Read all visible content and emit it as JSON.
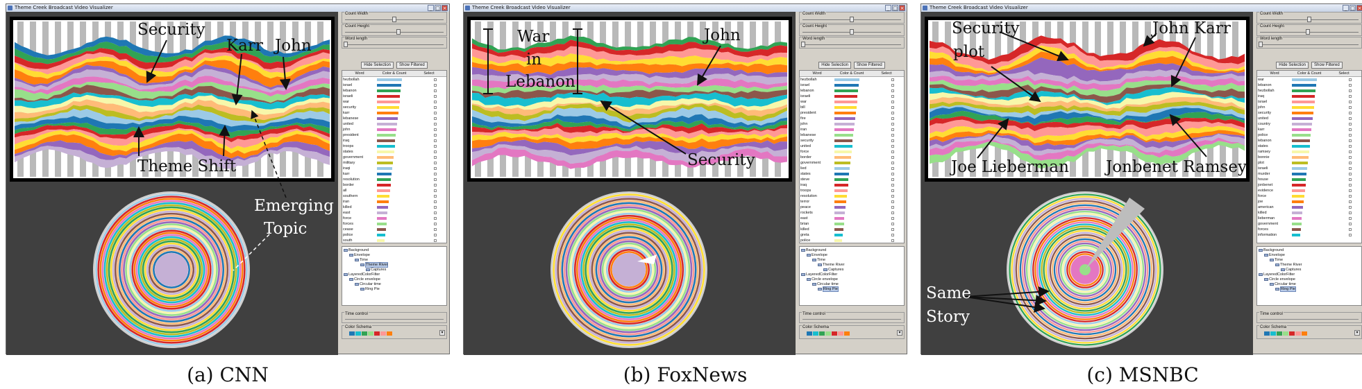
{
  "window_title": "Theme Creek Broadcast Video Visualizer",
  "window_buttons": [
    "_",
    "□",
    "×"
  ],
  "controls": {
    "count_width": "Count Width",
    "count_height": "Count Height",
    "word_length": "Word length",
    "hide_selection": "Hide Selection",
    "show_filtered": "Show Filtered",
    "col_word": "Word",
    "col_color_count": "Color & Count",
    "col_select": "Select",
    "time_control": "Time control",
    "color_schema": "Color Schema"
  },
  "tree": [
    "Background",
    "Envelope",
    "Time",
    "Theme River",
    "Captures",
    "LayeredColorFilter",
    "Circle envelope",
    "Circular time",
    "Ring Pie"
  ],
  "palette": [
    "#9ccae6",
    "#1f77b4",
    "#31a354",
    "#d62728",
    "#ff9896",
    "#ffdd33",
    "#ff7f0e",
    "#9467bd",
    "#c5b0d5",
    "#e377c2",
    "#98df8a",
    "#8c564b",
    "#17becf",
    "#f7f7aa",
    "#ffbb78",
    "#bcbd22"
  ],
  "panels": [
    {
      "caption": "(a)  CNN",
      "words": [
        "hezbollah",
        "israel",
        "lebanon",
        "israeli",
        "war",
        "security",
        "karr",
        "lebanese",
        "united",
        "john",
        "president",
        "iraq",
        "troops",
        "states",
        "government",
        "military",
        "iraqi",
        "karr",
        "resolution",
        "border",
        "all",
        "southern",
        "iran",
        "killed",
        "east",
        "force",
        "forces",
        "cease",
        "police",
        "south"
      ],
      "annotations": [
        "Security",
        "Karr",
        "John",
        "Theme Shift",
        "Emerging",
        "Topic"
      ]
    },
    {
      "caption": "(b)  FoxNews",
      "words": [
        "hezbollah",
        "israel",
        "lebanon",
        "israeli",
        "war",
        "bill",
        "president",
        "fire",
        "john",
        "iran",
        "lebanese",
        "security",
        "united",
        "force",
        "border",
        "government",
        "lied",
        "states",
        "steve",
        "iraq",
        "troops",
        "resolution",
        "terror",
        "peace",
        "rockets",
        "east",
        "brian",
        "killed",
        "greta",
        "police"
      ],
      "annotations": [
        "War",
        "in",
        "Lebanon",
        "John",
        "Security"
      ]
    },
    {
      "caption": "(c)  MSNBC",
      "words": [
        "war",
        "lebanon",
        "hezbollah",
        "iraq",
        "israel",
        "john",
        "security",
        "united",
        "country",
        "karr",
        "police",
        "lebanon",
        "states",
        "ramsey",
        "bonnie",
        "plot",
        "israeli",
        "murder",
        "house",
        "jonbenet",
        "evidence",
        "force",
        "joe",
        "american",
        "killed",
        "lieberman",
        "government",
        "forces",
        "information"
      ],
      "annotations": [
        "Security",
        "plot",
        "John Karr",
        "Joe Lieberman",
        "Jonbenet Ramsey",
        "Same",
        "Story"
      ]
    }
  ]
}
